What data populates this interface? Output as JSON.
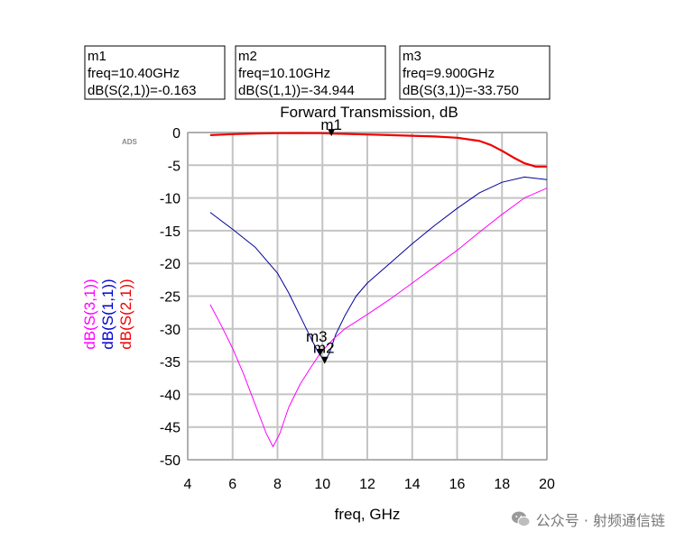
{
  "chart_data": {
    "type": "line",
    "title": "Forward Transmission, dB",
    "xlabel": "freq, GHz",
    "xlim": [
      4,
      20
    ],
    "ylim": [
      -50,
      0
    ],
    "x_ticks": [
      4,
      6,
      8,
      10,
      12,
      14,
      16,
      18,
      20
    ],
    "y_ticks": [
      0,
      -5,
      -10,
      -15,
      -20,
      -25,
      -30,
      -35,
      -40,
      -45,
      -50
    ],
    "grid": true,
    "ylabels": [
      {
        "text": "dB(S(3,1))",
        "color": "#ff00ff"
      },
      {
        "text": "dB(S(1,1))",
        "color": "#0000cc"
      },
      {
        "text": "dB(S(2,1))",
        "color": "#ee0000"
      }
    ],
    "series": [
      {
        "name": "dB(S(2,1))",
        "color": "#ee0000",
        "x": [
          5,
          6,
          7,
          8,
          9,
          10,
          10.4,
          11,
          12,
          13,
          14,
          15,
          16,
          17,
          17.5,
          18,
          18.5,
          19,
          19.5,
          20
        ],
        "y": [
          -0.4,
          -0.25,
          -0.15,
          -0.1,
          -0.08,
          -0.1,
          -0.163,
          -0.2,
          -0.3,
          -0.4,
          -0.5,
          -0.6,
          -0.8,
          -1.3,
          -1.9,
          -2.8,
          -3.8,
          -4.7,
          -5.2,
          -5.2
        ]
      },
      {
        "name": "dB(S(1,1))",
        "color": "#000099",
        "x": [
          5,
          6,
          7,
          8,
          8.5,
          9,
          9.5,
          9.8,
          10.1,
          10.3,
          10.6,
          11,
          11.5,
          12,
          13,
          14,
          15,
          16,
          17,
          18,
          19,
          20
        ],
        "y": [
          -12.2,
          -14.8,
          -17.5,
          -21.5,
          -24.5,
          -28,
          -31.5,
          -33.5,
          -34.944,
          -33.8,
          -30.8,
          -28,
          -25,
          -23,
          -20,
          -17,
          -14.2,
          -11.6,
          -9.2,
          -7.6,
          -6.8,
          -7.2
        ]
      },
      {
        "name": "dB(S(3,1))",
        "color": "#ff00ff",
        "x": [
          5,
          5.5,
          6,
          6.5,
          7,
          7.5,
          7.8,
          8.1,
          8.5,
          9,
          9.5,
          9.9,
          10.5,
          11,
          12,
          13,
          14,
          15,
          16,
          17,
          18,
          19,
          20
        ],
        "y": [
          -26.3,
          -29.5,
          -33,
          -37,
          -41.5,
          -46,
          -48,
          -46,
          -42,
          -38.5,
          -35.8,
          -33.75,
          -31.5,
          -30,
          -27.8,
          -25.5,
          -23,
          -20.5,
          -18,
          -15.2,
          -12.5,
          -10,
          -8.5
        ]
      }
    ],
    "markers": [
      {
        "id": "m1",
        "label": "m1",
        "trace": "dB(S(2,1))",
        "x": 10.4,
        "y": -0.163,
        "lines": [
          "m1",
          "freq=10.40GHz",
          "dB(S(2,1))=-0.163"
        ]
      },
      {
        "id": "m2",
        "label": "m2",
        "trace": "dB(S(1,1))",
        "x": 10.1,
        "y": -34.944,
        "lines": [
          "m2",
          "freq=10.10GHz",
          "dB(S(1,1))=-34.944"
        ]
      },
      {
        "id": "m3",
        "label": "m3",
        "trace": "dB(S(3,1))",
        "x": 9.9,
        "y": -33.75,
        "lines": [
          "m3",
          "freq=9.900GHz",
          "dB(S(3,1))=-33.750"
        ]
      }
    ],
    "corner_tag": "ADS"
  },
  "watermark": {
    "text": "公众号 · 射频通信链",
    "icon": "wechat-icon"
  }
}
